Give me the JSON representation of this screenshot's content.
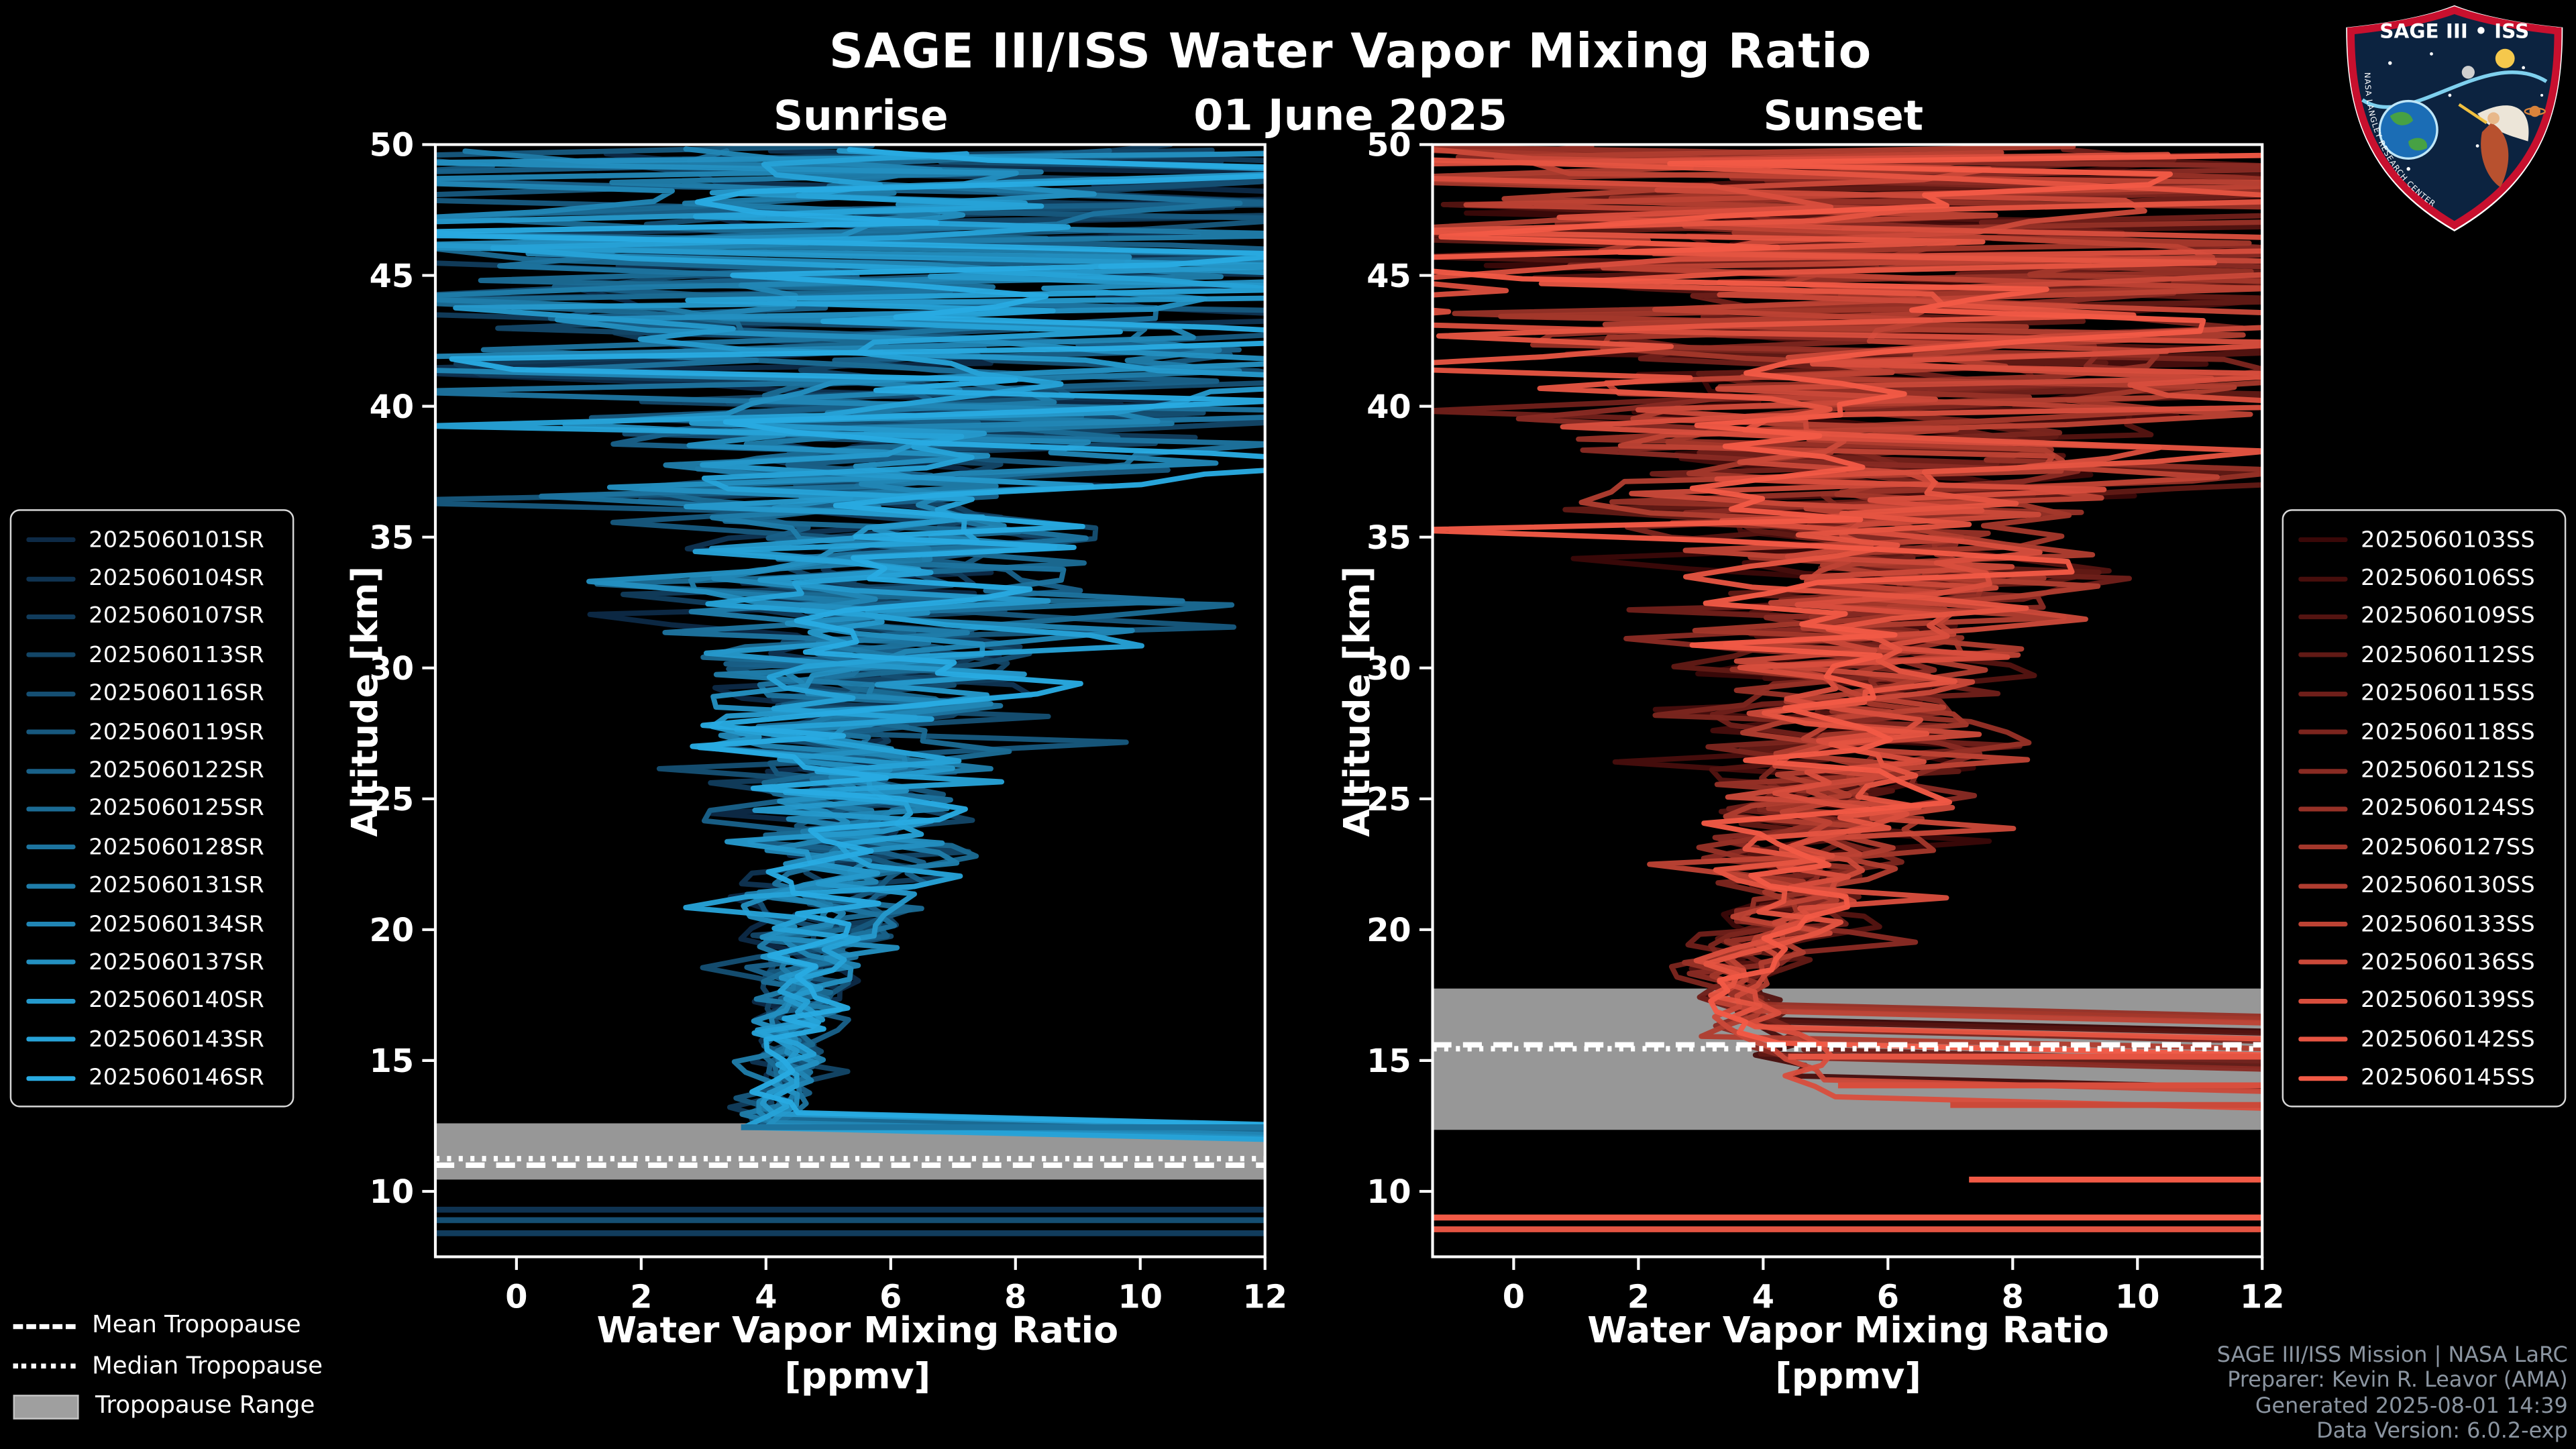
{
  "header": {
    "title": "SAGE III/ISS Water Vapor Mixing Ratio",
    "date": "01 June 2025",
    "left_panel_title": "Sunrise",
    "right_panel_title": "Sunset"
  },
  "axes": {
    "ylabel": "Altitude [km]",
    "xlabel_line1": "Water Vapor Mixing Ratio",
    "xlabel_line2": "[ppmv]",
    "xticks": [
      0,
      2,
      4,
      6,
      8,
      10,
      12
    ],
    "yticks": [
      10,
      15,
      20,
      25,
      30,
      35,
      40,
      45,
      50
    ],
    "xlim": [
      -1.3,
      12
    ],
    "ylim": [
      7.5,
      50
    ]
  },
  "tropopause_legend": {
    "mean_label": "Mean Tropopause",
    "median_label": "Median Tropopause",
    "range_label": "Tropopause Range"
  },
  "credits": {
    "line1": "SAGE III/ISS Mission | NASA LaRC",
    "line2": "Preparer: Kevin R. Leavor (AMA)",
    "line3": "Generated 2025-08-01 14:39",
    "line4": "Data Version: 6.0.2-exp"
  },
  "logo": {
    "title": "SAGE III • ISS",
    "arc_text": "NASA LANGLEY RESEARCH CENTER"
  },
  "chart_data": [
    {
      "type": "line",
      "panel": "sunrise",
      "title": "Sunrise",
      "xlabel": "Water Vapor Mixing Ratio [ppmv]",
      "ylabel": "Altitude [km]",
      "xlim": [
        -1.3,
        12
      ],
      "ylim": [
        7.5,
        50
      ],
      "grid": false,
      "legend_position": "left-outside",
      "band_color": "#9f9f9f",
      "line_color_range": [
        "#0D2A46",
        "#29ABE2"
      ],
      "series": [
        {
          "name": "2025060101SR",
          "color": "#0D2A46"
        },
        {
          "name": "2025060104SR",
          "color": "#0F3351"
        },
        {
          "name": "2025060107SR",
          "color": "#113C5C"
        },
        {
          "name": "2025060113SR",
          "color": "#134667"
        },
        {
          "name": "2025060116SR",
          "color": "#154F73"
        },
        {
          "name": "2025060119SR",
          "color": "#17587E"
        },
        {
          "name": "2025060122SR",
          "color": "#196189"
        },
        {
          "name": "2025060125SR",
          "color": "#1B6B94"
        },
        {
          "name": "2025060128SR",
          "color": "#1D749F"
        },
        {
          "name": "2025060131SR",
          "color": "#1F7DAA"
        },
        {
          "name": "2025060134SR",
          "color": "#2186B5"
        },
        {
          "name": "2025060137SR",
          "color": "#2390C1"
        },
        {
          "name": "2025060140SR",
          "color": "#2599CC"
        },
        {
          "name": "2025060143SR",
          "color": "#27A2D7"
        },
        {
          "name": "2025060146SR",
          "color": "#29ABE2"
        }
      ],
      "envelope": {
        "altitudes": [
          12.5,
          13,
          14,
          15,
          16,
          17,
          18,
          19,
          20,
          22,
          24,
          26,
          28,
          30,
          32,
          34,
          36,
          38,
          40,
          42,
          44,
          46,
          48,
          50
        ],
        "center": [
          4.05,
          4.1,
          4.2,
          4.35,
          4.45,
          4.55,
          4.65,
          4.8,
          4.95,
          5.2,
          5.35,
          5.5,
          5.6,
          5.7,
          5.8,
          5.9,
          5.95,
          6.0,
          6.0,
          5.8,
          5.7,
          5.6,
          5.5,
          5.5
        ],
        "spread": [
          0.4,
          0.45,
          0.5,
          0.6,
          0.7,
          0.8,
          0.95,
          1.1,
          1.4,
          1.7,
          2.0,
          2.2,
          2.6,
          2.9,
          3.2,
          3.7,
          4.2,
          5.0,
          6.0,
          7.5,
          8.5,
          9.0,
          9.0,
          9.0
        ]
      },
      "start_alt": [
        12.35,
        13.1
      ],
      "tropopause": {
        "mean": 11.0,
        "median": 11.25,
        "range": [
          10.45,
          12.6
        ]
      },
      "offscale_segments": [
        {
          "alt": 12.45,
          "x0": 3.6,
          "x1": 14.0,
          "color": "#1D74A0"
        },
        {
          "alt": 9.3,
          "x0": -1.5,
          "x1": 14.0,
          "color": "#0F3351"
        },
        {
          "alt": 8.9,
          "x0": -1.5,
          "x1": 14.0,
          "color": "#154F73"
        },
        {
          "alt": 8.4,
          "x0": -1.5,
          "x1": 14.0,
          "color": "#113C5C"
        }
      ]
    },
    {
      "type": "line",
      "panel": "sunset",
      "title": "Sunset",
      "xlabel": "Water Vapor Mixing Ratio [ppmv]",
      "ylabel": "Altitude [km]",
      "xlim": [
        -1.3,
        12
      ],
      "ylim": [
        7.5,
        50
      ],
      "grid": false,
      "legend_position": "right-outside",
      "band_color": "#9f9f9f",
      "line_color_range": [
        "#3A0808",
        "#F25A46"
      ],
      "series": [
        {
          "name": "2025060103SS",
          "color": "#3A0808"
        },
        {
          "name": "2025060106SS",
          "color": "#470E0C"
        },
        {
          "name": "2025060109SS",
          "color": "#541411"
        },
        {
          "name": "2025060112SS",
          "color": "#611A15"
        },
        {
          "name": "2025060115SS",
          "color": "#6F1F1A"
        },
        {
          "name": "2025060118SS",
          "color": "#7C251E"
        },
        {
          "name": "2025060121SS",
          "color": "#892B23"
        },
        {
          "name": "2025060124SS",
          "color": "#963127"
        },
        {
          "name": "2025060127SS",
          "color": "#A3372B"
        },
        {
          "name": "2025060130SS",
          "color": "#B03D30"
        },
        {
          "name": "2025060133SS",
          "color": "#BD4334"
        },
        {
          "name": "2025060136SS",
          "color": "#CB4939"
        },
        {
          "name": "2025060139SS",
          "color": "#D84E3D"
        },
        {
          "name": "2025060142SS",
          "color": "#E55442"
        },
        {
          "name": "2025060145SS",
          "color": "#F25A46"
        }
      ],
      "envelope": {
        "altitudes": [
          13.5,
          14,
          15,
          16,
          17,
          18,
          19,
          20,
          22,
          24,
          26,
          28,
          30,
          32,
          34,
          36,
          38,
          40,
          42,
          44,
          46,
          48,
          50
        ],
        "center": [
          5.0,
          4.8,
          4.5,
          4.1,
          3.7,
          3.6,
          3.9,
          4.3,
          4.7,
          5.0,
          5.2,
          5.4,
          5.55,
          5.7,
          5.8,
          5.9,
          5.95,
          6.0,
          5.8,
          5.7,
          5.6,
          5.5,
          5.5
        ],
        "spread": [
          0.6,
          0.6,
          0.6,
          0.6,
          0.65,
          0.8,
          1.0,
          1.2,
          1.6,
          1.9,
          2.2,
          2.6,
          2.9,
          3.2,
          3.7,
          4.2,
          5.0,
          6.0,
          7.5,
          8.5,
          9.0,
          9.0,
          9.0
        ]
      },
      "start_alt": [
        13.6,
        17.3
      ],
      "tropopause": {
        "mean": 15.6,
        "median": 15.45,
        "range": [
          12.35,
          17.75
        ]
      },
      "offscale_segments": [
        {
          "alt": 15.15,
          "x0": 4.4,
          "x1": 14.0,
          "color": "#E55442"
        },
        {
          "alt": 14.05,
          "x0": 5.2,
          "x1": 14.0,
          "color": "#D84E3D"
        },
        {
          "alt": 13.3,
          "x0": 7.0,
          "x1": 14.0,
          "color": "#CB4939"
        },
        {
          "alt": 10.45,
          "x0": 7.3,
          "x1": 14.0,
          "color": "#F25A46"
        },
        {
          "alt": 9.0,
          "x0": -1.5,
          "x1": 14.0,
          "color": "#F25A46"
        },
        {
          "alt": 8.55,
          "x0": -1.5,
          "x1": 14.0,
          "color": "#E55442"
        }
      ]
    }
  ]
}
